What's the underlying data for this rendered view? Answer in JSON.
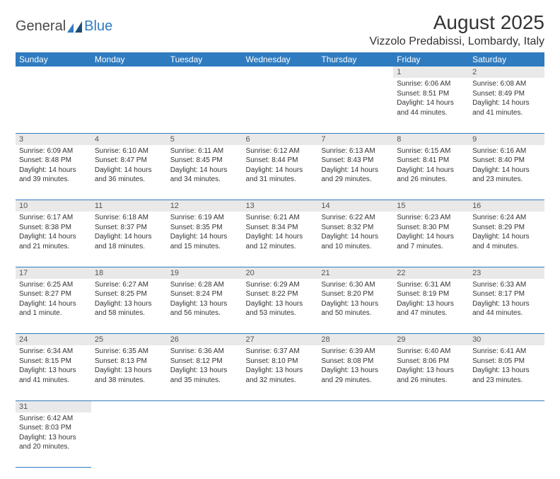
{
  "logo": {
    "text1": "General",
    "text2": "Blue"
  },
  "title": "August 2025",
  "location": "Vizzolo Predabissi, Lombardy, Italy",
  "colors": {
    "header_bg": "#2f7bbf",
    "daynum_bg": "#e9e9e9",
    "text": "#333333"
  },
  "daysOfWeek": [
    "Sunday",
    "Monday",
    "Tuesday",
    "Wednesday",
    "Thursday",
    "Friday",
    "Saturday"
  ],
  "weeks": [
    [
      null,
      null,
      null,
      null,
      null,
      {
        "n": "1",
        "sr": "Sunrise: 6:06 AM",
        "ss": "Sunset: 8:51 PM",
        "dl": "Daylight: 14 hours and 44 minutes."
      },
      {
        "n": "2",
        "sr": "Sunrise: 6:08 AM",
        "ss": "Sunset: 8:49 PM",
        "dl": "Daylight: 14 hours and 41 minutes."
      }
    ],
    [
      {
        "n": "3",
        "sr": "Sunrise: 6:09 AM",
        "ss": "Sunset: 8:48 PM",
        "dl": "Daylight: 14 hours and 39 minutes."
      },
      {
        "n": "4",
        "sr": "Sunrise: 6:10 AM",
        "ss": "Sunset: 8:47 PM",
        "dl": "Daylight: 14 hours and 36 minutes."
      },
      {
        "n": "5",
        "sr": "Sunrise: 6:11 AM",
        "ss": "Sunset: 8:45 PM",
        "dl": "Daylight: 14 hours and 34 minutes."
      },
      {
        "n": "6",
        "sr": "Sunrise: 6:12 AM",
        "ss": "Sunset: 8:44 PM",
        "dl": "Daylight: 14 hours and 31 minutes."
      },
      {
        "n": "7",
        "sr": "Sunrise: 6:13 AM",
        "ss": "Sunset: 8:43 PM",
        "dl": "Daylight: 14 hours and 29 minutes."
      },
      {
        "n": "8",
        "sr": "Sunrise: 6:15 AM",
        "ss": "Sunset: 8:41 PM",
        "dl": "Daylight: 14 hours and 26 minutes."
      },
      {
        "n": "9",
        "sr": "Sunrise: 6:16 AM",
        "ss": "Sunset: 8:40 PM",
        "dl": "Daylight: 14 hours and 23 minutes."
      }
    ],
    [
      {
        "n": "10",
        "sr": "Sunrise: 6:17 AM",
        "ss": "Sunset: 8:38 PM",
        "dl": "Daylight: 14 hours and 21 minutes."
      },
      {
        "n": "11",
        "sr": "Sunrise: 6:18 AM",
        "ss": "Sunset: 8:37 PM",
        "dl": "Daylight: 14 hours and 18 minutes."
      },
      {
        "n": "12",
        "sr": "Sunrise: 6:19 AM",
        "ss": "Sunset: 8:35 PM",
        "dl": "Daylight: 14 hours and 15 minutes."
      },
      {
        "n": "13",
        "sr": "Sunrise: 6:21 AM",
        "ss": "Sunset: 8:34 PM",
        "dl": "Daylight: 14 hours and 12 minutes."
      },
      {
        "n": "14",
        "sr": "Sunrise: 6:22 AM",
        "ss": "Sunset: 8:32 PM",
        "dl": "Daylight: 14 hours and 10 minutes."
      },
      {
        "n": "15",
        "sr": "Sunrise: 6:23 AM",
        "ss": "Sunset: 8:30 PM",
        "dl": "Daylight: 14 hours and 7 minutes."
      },
      {
        "n": "16",
        "sr": "Sunrise: 6:24 AM",
        "ss": "Sunset: 8:29 PM",
        "dl": "Daylight: 14 hours and 4 minutes."
      }
    ],
    [
      {
        "n": "17",
        "sr": "Sunrise: 6:25 AM",
        "ss": "Sunset: 8:27 PM",
        "dl": "Daylight: 14 hours and 1 minute."
      },
      {
        "n": "18",
        "sr": "Sunrise: 6:27 AM",
        "ss": "Sunset: 8:25 PM",
        "dl": "Daylight: 13 hours and 58 minutes."
      },
      {
        "n": "19",
        "sr": "Sunrise: 6:28 AM",
        "ss": "Sunset: 8:24 PM",
        "dl": "Daylight: 13 hours and 56 minutes."
      },
      {
        "n": "20",
        "sr": "Sunrise: 6:29 AM",
        "ss": "Sunset: 8:22 PM",
        "dl": "Daylight: 13 hours and 53 minutes."
      },
      {
        "n": "21",
        "sr": "Sunrise: 6:30 AM",
        "ss": "Sunset: 8:20 PM",
        "dl": "Daylight: 13 hours and 50 minutes."
      },
      {
        "n": "22",
        "sr": "Sunrise: 6:31 AM",
        "ss": "Sunset: 8:19 PM",
        "dl": "Daylight: 13 hours and 47 minutes."
      },
      {
        "n": "23",
        "sr": "Sunrise: 6:33 AM",
        "ss": "Sunset: 8:17 PM",
        "dl": "Daylight: 13 hours and 44 minutes."
      }
    ],
    [
      {
        "n": "24",
        "sr": "Sunrise: 6:34 AM",
        "ss": "Sunset: 8:15 PM",
        "dl": "Daylight: 13 hours and 41 minutes."
      },
      {
        "n": "25",
        "sr": "Sunrise: 6:35 AM",
        "ss": "Sunset: 8:13 PM",
        "dl": "Daylight: 13 hours and 38 minutes."
      },
      {
        "n": "26",
        "sr": "Sunrise: 6:36 AM",
        "ss": "Sunset: 8:12 PM",
        "dl": "Daylight: 13 hours and 35 minutes."
      },
      {
        "n": "27",
        "sr": "Sunrise: 6:37 AM",
        "ss": "Sunset: 8:10 PM",
        "dl": "Daylight: 13 hours and 32 minutes."
      },
      {
        "n": "28",
        "sr": "Sunrise: 6:39 AM",
        "ss": "Sunset: 8:08 PM",
        "dl": "Daylight: 13 hours and 29 minutes."
      },
      {
        "n": "29",
        "sr": "Sunrise: 6:40 AM",
        "ss": "Sunset: 8:06 PM",
        "dl": "Daylight: 13 hours and 26 minutes."
      },
      {
        "n": "30",
        "sr": "Sunrise: 6:41 AM",
        "ss": "Sunset: 8:05 PM",
        "dl": "Daylight: 13 hours and 23 minutes."
      }
    ],
    [
      {
        "n": "31",
        "sr": "Sunrise: 6:42 AM",
        "ss": "Sunset: 8:03 PM",
        "dl": "Daylight: 13 hours and 20 minutes."
      },
      null,
      null,
      null,
      null,
      null,
      null
    ]
  ]
}
